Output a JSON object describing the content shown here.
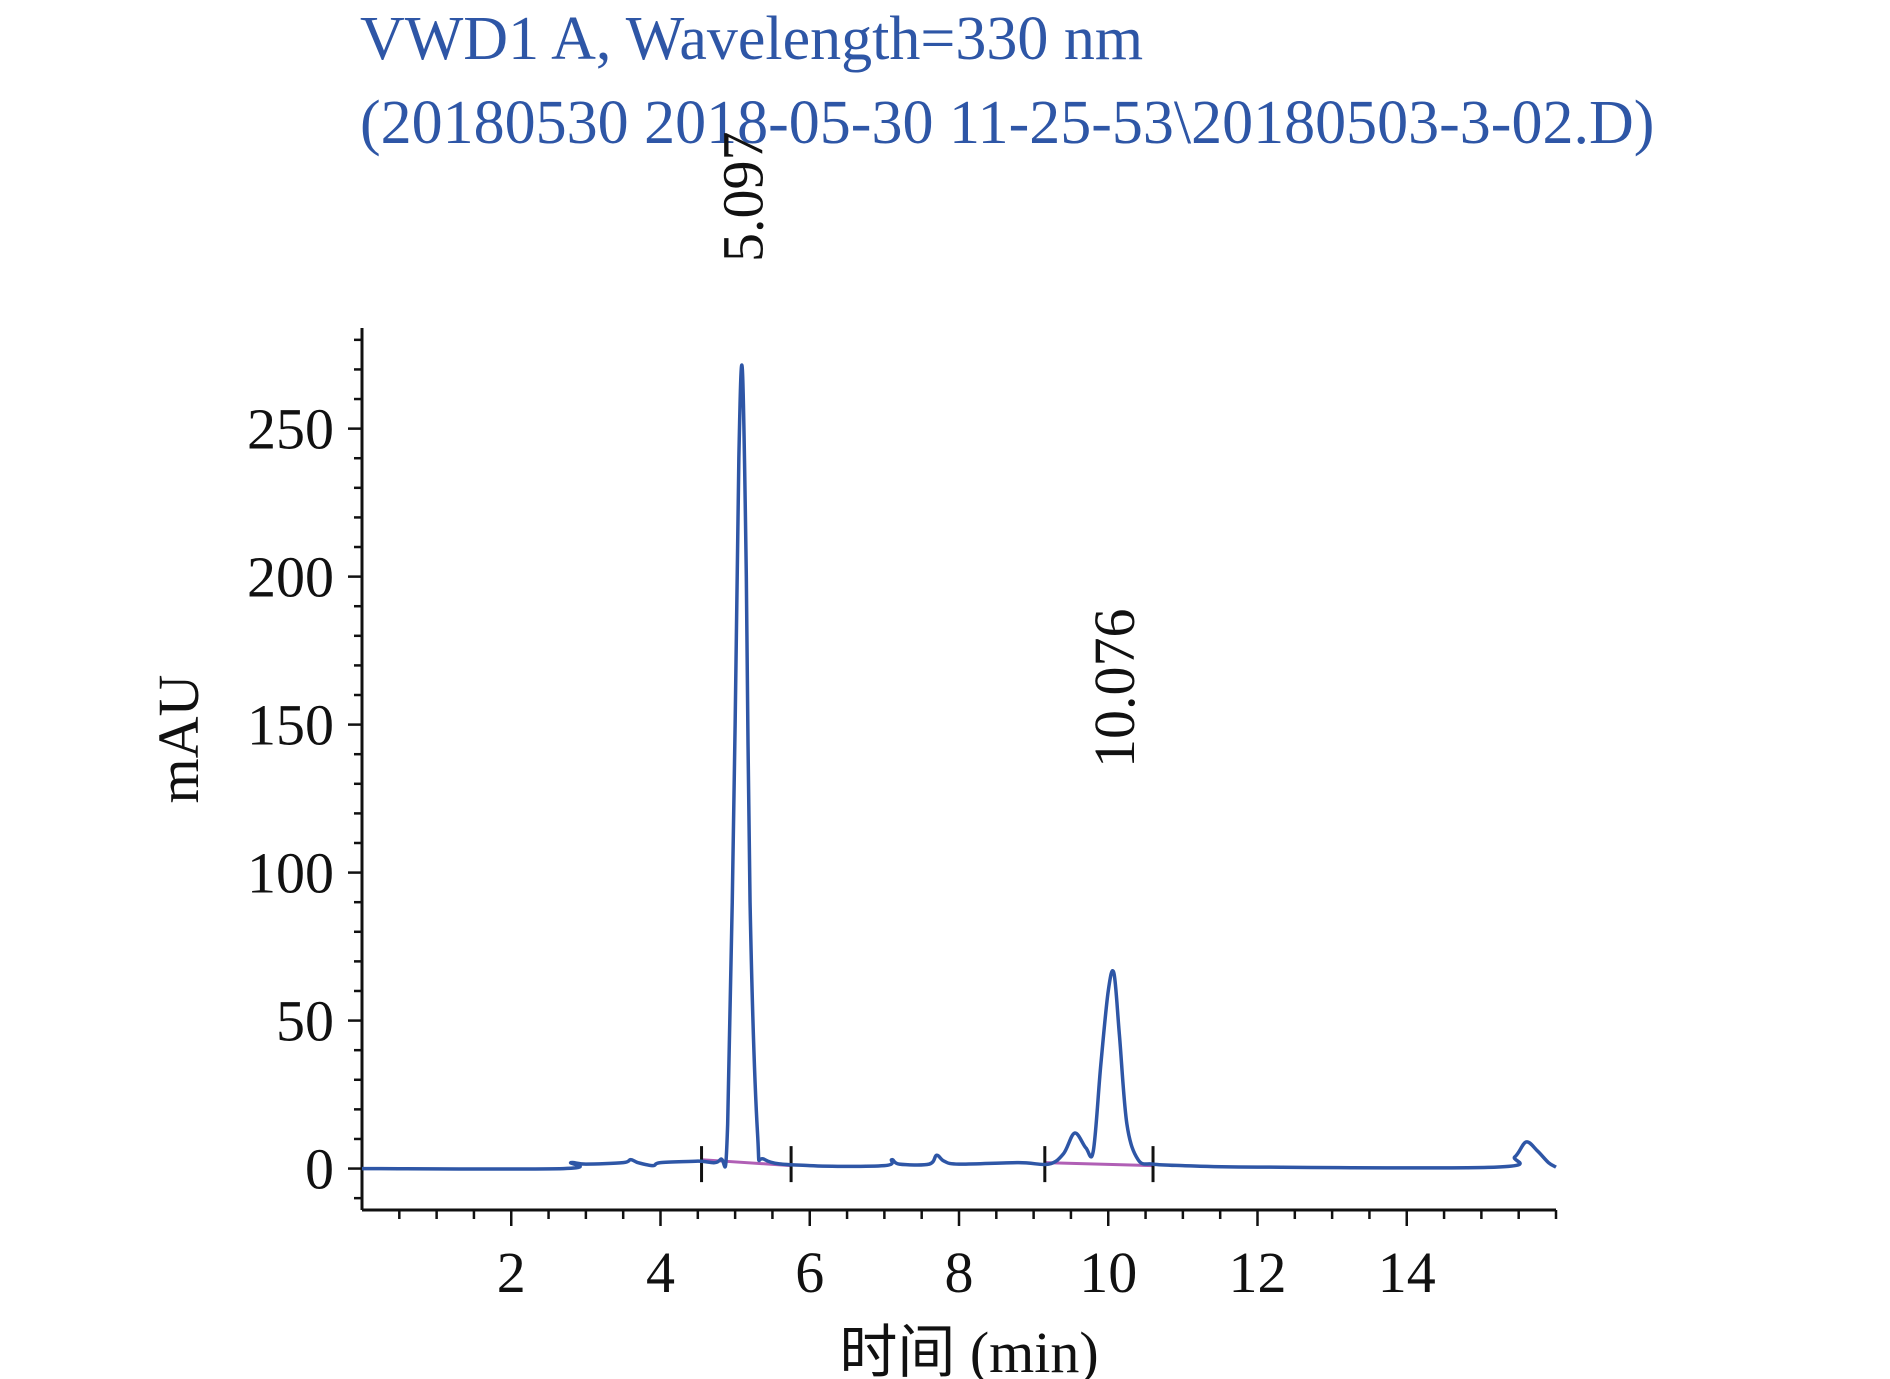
{
  "chart_data": {
    "type": "line",
    "title": "VWD1 A, Wavelength=330 nm",
    "subtitle": "(20180530 2018-05-30 11-25-53\\20180503-3-02.D)",
    "xlabel": "时间 (min)",
    "ylabel": "mAU",
    "xlim": [
      0,
      16
    ],
    "ylim": [
      -14,
      284
    ],
    "xticks": [
      2,
      4,
      6,
      8,
      10,
      12,
      14
    ],
    "yticks": [
      0,
      50,
      100,
      150,
      200,
      250
    ],
    "grid": false,
    "series": [
      {
        "color": "#2e56a6",
        "x": [
          0,
          2.7,
          2.8,
          3.0,
          3.5,
          3.6,
          3.7,
          3.9,
          4.0,
          4.5,
          4.8,
          4.9,
          5.0,
          5.05,
          5.097,
          5.15,
          5.2,
          5.3,
          5.4,
          6.0,
          7.0,
          7.1,
          7.2,
          7.6,
          7.7,
          7.8,
          8.0,
          8.8,
          9.2,
          9.4,
          9.55,
          9.7,
          9.8,
          9.9,
          10.0,
          10.076,
          10.15,
          10.25,
          10.4,
          10.6,
          11.0,
          12.0,
          15.2,
          15.45,
          15.6,
          15.75,
          15.9,
          16.0
        ],
        "y": [
          0,
          0,
          2,
          1.5,
          2,
          3,
          2,
          1,
          2,
          2.5,
          3,
          15,
          150,
          240,
          270,
          200,
          90,
          12,
          3,
          1,
          1,
          3,
          1.5,
          1.5,
          4.5,
          2.5,
          1.5,
          2,
          1.5,
          5,
          12,
          7,
          6,
          35,
          60,
          66,
          45,
          15,
          3,
          1.5,
          1,
          0.5,
          0.5,
          4,
          9,
          6,
          2,
          0.5
        ]
      }
    ],
    "integration_baselines": [
      {
        "color": "#b05fb5",
        "x": [
          4.55,
          5.75
        ],
        "y": [
          3,
          1
        ]
      },
      {
        "color": "#b05fb5",
        "x": [
          9.15,
          10.6
        ],
        "y": [
          2,
          1
        ]
      }
    ],
    "peak_markers": [
      4.55,
      5.75,
      9.15,
      10.6
    ],
    "annotations": [
      {
        "text": "5.097",
        "x": 5.097
      },
      {
        "text": "10.076",
        "x": 10.076
      }
    ]
  }
}
